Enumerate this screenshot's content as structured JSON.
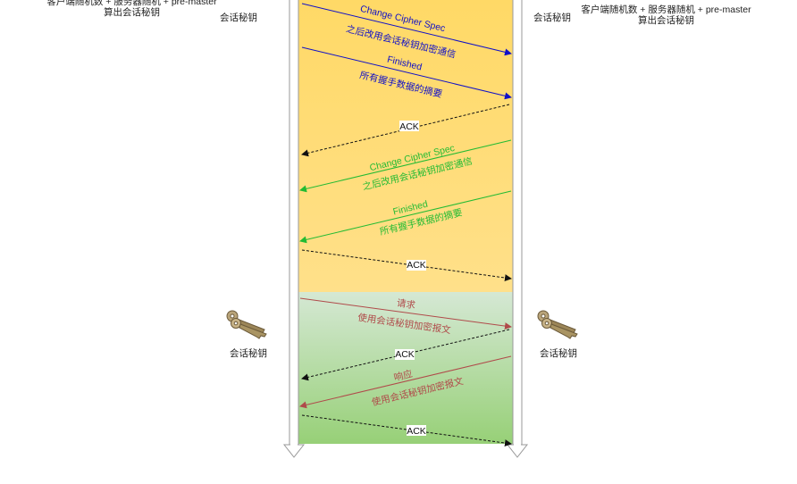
{
  "left_note": {
    "line1": "客户端随机数 + 服务器随机 +   pre-master",
    "line2": "算出会话秘钥"
  },
  "right_note": {
    "line1": "客户端随机数 + 服务器随机 +   pre-master",
    "line2": "算出会话秘钥"
  },
  "left_session_key_top": "会话秘钥",
  "right_session_key_top": "会话秘钥",
  "left_session_key_bottom": "会话秘钥",
  "right_session_key_bottom": "会话秘钥",
  "messages": {
    "client_ccs_label": "Change Cipher Spec",
    "client_ccs_sub": "之后改用会话秘钥加密通信",
    "client_finished_label": "Finished",
    "client_finished_sub": "所有握手数据的摘要",
    "ack1": "ACK",
    "server_ccs_label": "Change Cipher Spec",
    "server_ccs_sub": "之后改用会话秘钥加密通信",
    "server_finished_label": "Finished",
    "server_finished_sub": "所有握手数据的摘要",
    "ack2": "ACK",
    "request_label": "请求",
    "request_sub": "使用会话秘钥加密报文",
    "ack3": "ACK",
    "response_label": "响应",
    "response_sub": "使用会话秘钥加密报文",
    "ack4": "ACK"
  },
  "colors": {
    "client_msg": "#1010c8",
    "server_msg": "#22bb33",
    "app_msg": "#b04a4a",
    "ack": "#111111",
    "handshake_band": "#ffd966",
    "data_band_top": "#d5e8d4",
    "data_band_bottom": "#97d077"
  }
}
